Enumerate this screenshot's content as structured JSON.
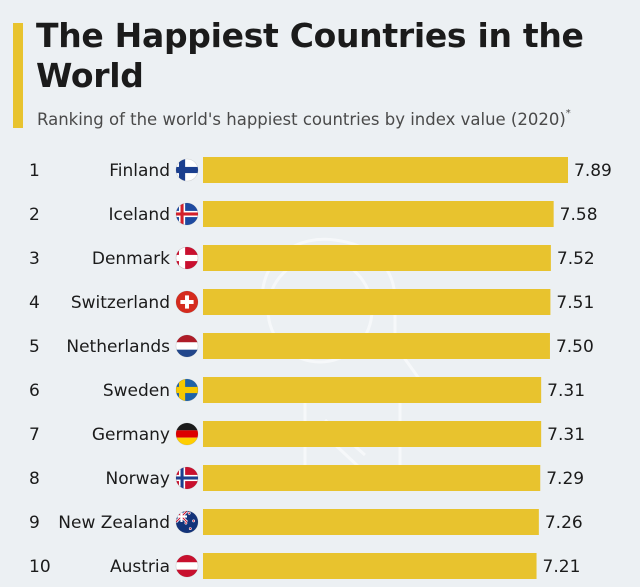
{
  "header": {
    "title": "The Happiest Countries in the World",
    "subtitle": "Ranking of the world's happiest countries by index value (2020)",
    "subtitle_mark": "*",
    "accent_color": "#e8c32e"
  },
  "chart_data": {
    "type": "bar",
    "orientation": "horizontal",
    "title": "The Happiest Countries in the World",
    "subtitle": "Ranking of the world's happiest countries by index value (2020)",
    "ranks": [
      "1",
      "2",
      "3",
      "4",
      "5",
      "6",
      "7",
      "8",
      "9",
      "10"
    ],
    "categories": [
      "Finland",
      "Iceland",
      "Denmark",
      "Switzerland",
      "Netherlands",
      "Sweden",
      "Germany",
      "Norway",
      "New Zealand",
      "Austria"
    ],
    "values": [
      7.89,
      7.58,
      7.52,
      7.51,
      7.5,
      7.31,
      7.31,
      7.29,
      7.26,
      7.21
    ],
    "value_labels": [
      "7.89",
      "7.58",
      "7.52",
      "7.51",
      "7.50",
      "7.31",
      "7.31",
      "7.29",
      "7.26",
      "7.21"
    ],
    "flags": [
      "finland-flag",
      "iceland-flag",
      "denmark-flag",
      "switzerland-flag",
      "netherlands-flag",
      "sweden-flag",
      "germany-flag",
      "norway-flag",
      "new-zealand-flag",
      "austria-flag"
    ],
    "bar_color": "#e8c32e",
    "xlim": [
      0,
      7.89
    ],
    "grid": false,
    "legend": "none"
  }
}
